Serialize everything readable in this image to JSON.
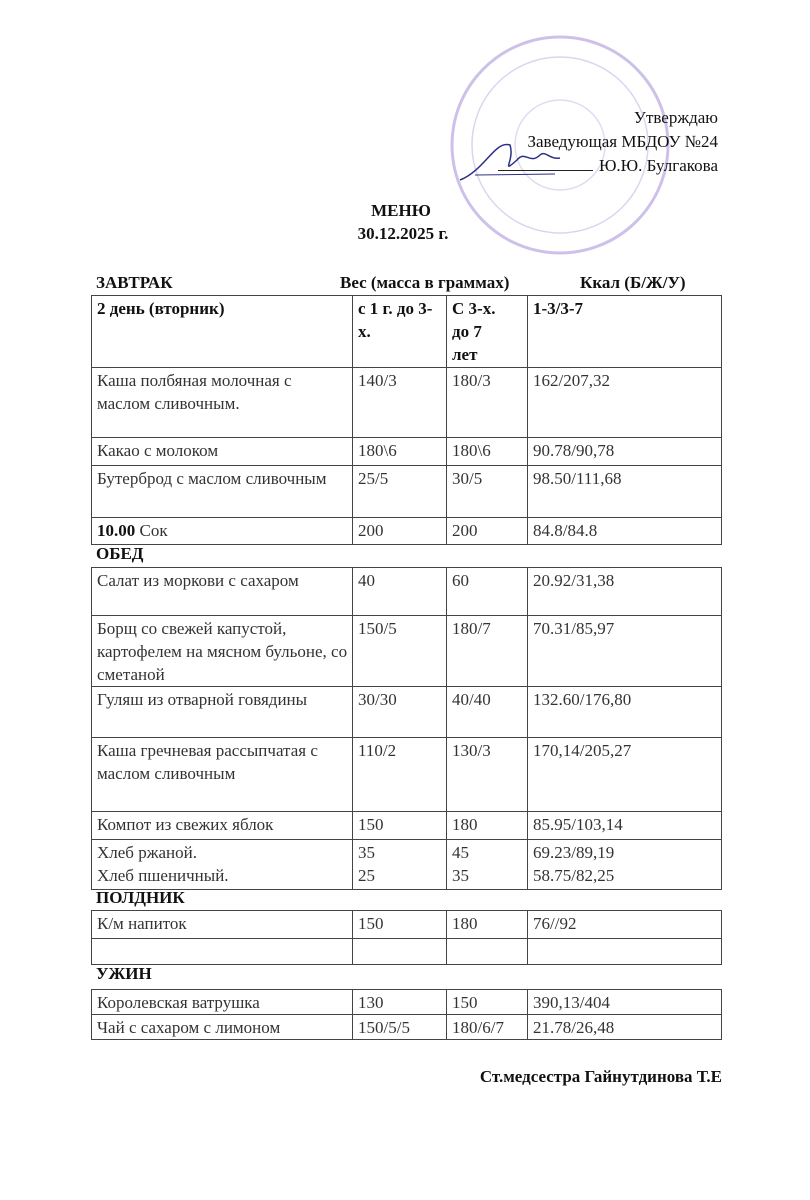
{
  "approval": {
    "line1": "Утверждаю",
    "line2": "Заведующая МБДОУ №24",
    "line3": "Ю.Ю. Булгакова"
  },
  "stamp_color": "#8a6bc2",
  "title": "МЕНЮ",
  "date": "30.12.2025 г.",
  "header": {
    "meal": "ЗАВТРАК",
    "weight": "Вес (масса в граммах)",
    "kcal": "Ккал (Б/Ж/У)"
  },
  "columns": [
    "2 день (вторник)",
    "с 1 г. до 3-х.",
    "С 3-х. до 7 лет",
    "1-3/3-7"
  ],
  "breakfast": [
    [
      "Каша полбяная молочная с маслом сливочным.",
      "140/3",
      "180/3",
      "162/207,32"
    ],
    [
      "Какао с  молоком",
      "180\\6",
      "180\\6",
      "90.78/90,78"
    ],
    [
      "Бутерброд  с маслом сливочным",
      "25/5",
      "30/5",
      "98.50/111,68"
    ],
    [
      "10.00 Сок",
      "200",
      "200",
      "84.8/84.8"
    ]
  ],
  "lunch_label": "ОБЕД",
  "lunch": [
    [
      "Салат из моркови с сахаром",
      "40",
      "60",
      "20.92/31,38"
    ],
    [
      "Борщ  со свежей капустой, картофелем на мясном бульоне, со сметаной",
      "150/5",
      "180/7",
      "70.31/85,97"
    ],
    [
      "Гуляш из отварной говядины",
      "30/30",
      "40/40",
      "132.60/176,80"
    ],
    [
      "Каша гречневая рассыпчатая с маслом сливочным",
      "110/2",
      "130/3",
      "170,14/205,27"
    ],
    [
      "Компот из свежих яблок",
      "150",
      "180",
      "85.95/103,14"
    ],
    [
      "Хлеб  ржаной.\nХлеб пшеничный.",
      "35\n25",
      "45\n35",
      "69.23/89,19\n58.75/82,25"
    ]
  ],
  "snack_label": "ПОЛДНИК",
  "snack": [
    [
      "К/м напиток",
      "150",
      "180",
      "76//92"
    ],
    [
      "",
      "",
      "",
      ""
    ]
  ],
  "dinner_label": "УЖИН",
  "dinner": [
    [
      "Королевская ватрушка",
      "130",
      "150",
      "390,13/404"
    ],
    [
      "Чай с сахаром с лимоном",
      "150/5/5",
      "180/6/7",
      "21.78/26,48"
    ]
  ],
  "footer": "Ст.медсестра  Гайнутдинова Т.Е"
}
